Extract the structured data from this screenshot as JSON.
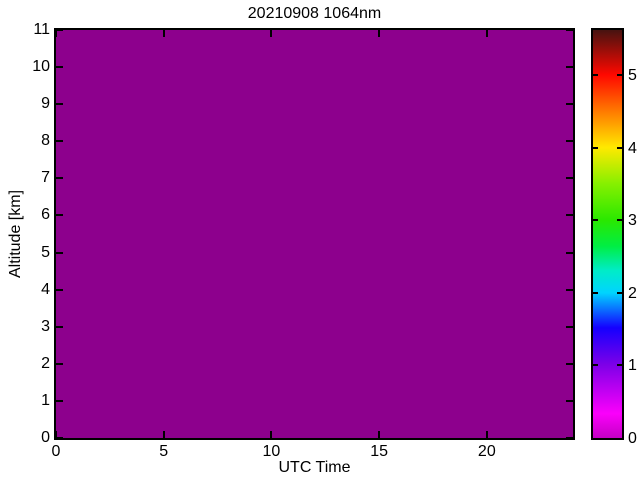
{
  "figure": {
    "background_color": "#ffffff",
    "title": "20210908 1064nm"
  },
  "chart_data": {
    "type": "heatmap",
    "title": "20210908 1064nm",
    "xlabel": "UTC Time",
    "ylabel": "Altitude [km]",
    "xlim": [
      0,
      24
    ],
    "ylim": [
      0,
      11
    ],
    "x_ticks": [
      0,
      5,
      10,
      15,
      20
    ],
    "y_ticks": [
      0,
      1,
      2,
      3,
      4,
      5,
      6,
      7,
      8,
      9,
      10,
      11
    ],
    "grid": false,
    "legend_position": "none",
    "field": {
      "description": "uniform constant field across all times and altitudes (no signal above background)",
      "uniform_value": 0,
      "uniform_color": "#8d008d"
    },
    "colorbar": {
      "position": "right",
      "range": [
        0,
        5.62
      ],
      "ticks": [
        0,
        1,
        2,
        3,
        4,
        5
      ],
      "gradient_stops": [
        {
          "pos": 0.0,
          "color": "#c400c4"
        },
        {
          "pos": 0.06,
          "color": "#fb00fb"
        },
        {
          "pos": 0.18,
          "color": "#7d00e8"
        },
        {
          "pos": 0.27,
          "color": "#1500ff"
        },
        {
          "pos": 0.356,
          "color": "#00d4ff"
        },
        {
          "pos": 0.41,
          "color": "#00ecc8"
        },
        {
          "pos": 0.47,
          "color": "#00ee44"
        },
        {
          "pos": 0.534,
          "color": "#2ae800"
        },
        {
          "pos": 0.623,
          "color": "#86f000"
        },
        {
          "pos": 0.712,
          "color": "#ffe900"
        },
        {
          "pos": 0.8,
          "color": "#ff7b00"
        },
        {
          "pos": 0.89,
          "color": "#ff0800"
        },
        {
          "pos": 1.0,
          "color": "#471310"
        }
      ]
    }
  }
}
